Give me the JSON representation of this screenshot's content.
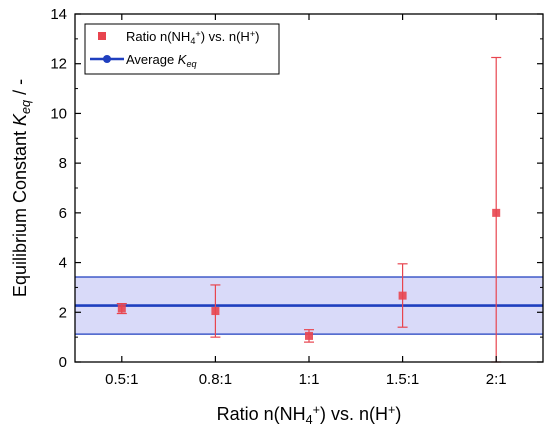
{
  "chart_data": {
    "type": "scatter",
    "categories": [
      "0.5:1",
      "0.8:1",
      "1:1",
      "1.5:1",
      "2:1"
    ],
    "series": [
      {
        "name": "Ratio n(NH4+) vs. n(H+)",
        "values": [
          2.15,
          2.05,
          1.05,
          2.67,
          6.0
        ],
        "error_low": [
          1.95,
          1.0,
          0.8,
          1.4,
          0.0
        ],
        "error_high": [
          2.35,
          3.1,
          1.3,
          3.95,
          12.25
        ],
        "color": "#e8454f"
      },
      {
        "name": "Average Keq",
        "line_value": 2.27,
        "band_low": 1.12,
        "band_high": 3.42,
        "color": "#1f3fbf",
        "band_color": "#d9daf9"
      }
    ],
    "xlabel": "Ratio n(NH4+) vs. n(H+)",
    "ylabel": "Equilibrium Constant Keq / -",
    "ylim": [
      0,
      14
    ],
    "yticks": [
      0,
      2,
      4,
      6,
      8,
      10,
      12,
      14
    ],
    "grid": false,
    "legend_position": "top-left"
  }
}
